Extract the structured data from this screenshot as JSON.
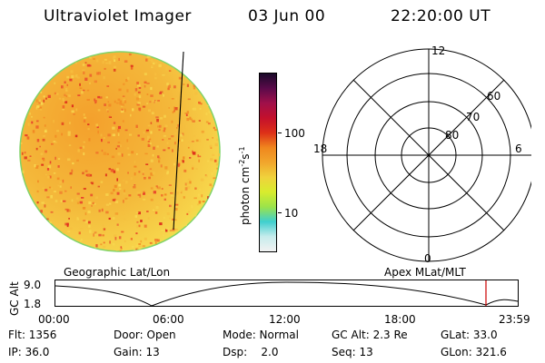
{
  "header": {
    "instrument": "Ultraviolet Imager",
    "date": "03 Jun 00",
    "time": "22:20:00 UT"
  },
  "colorbar": {
    "unit_label": "photon cm",
    "unit_exp1": "-2",
    "unit_mid": "s",
    "unit_exp2": "-1",
    "tick_100": "100",
    "tick_10": "10",
    "colors": [
      "#f2f2f2",
      "#c6ecec",
      "#3fcfcf",
      "#9be34a",
      "#d8ec2e",
      "#f0d23c",
      "#f1a62c",
      "#f0861e",
      "#dd3018",
      "#c4102c",
      "#a0104a",
      "#5a0a4a",
      "#1a0a2a"
    ]
  },
  "polar": {
    "mlt_labels": {
      "top": "12",
      "bottom": "0",
      "left": "18",
      "right": "6"
    },
    "lat_labels": [
      "60",
      "70",
      "80"
    ]
  },
  "labels": {
    "left": "Geographic Lat/Lon",
    "right": "Apex MLat/MLT"
  },
  "altplot": {
    "axis_label": "GC Alt",
    "y_top": "9.0",
    "y_bottom": "1.8",
    "x_ticks": [
      "00:00",
      "06:00",
      "12:00",
      "18:00",
      "23:59"
    ],
    "marker_color": "#cc0000"
  },
  "info": {
    "flt": "Flt: 1356",
    "ip": "IP: 36.0",
    "door": "Door: Open",
    "gain": "Gain: 13",
    "mode": "Mode: Normal",
    "dsp_label": "Dsp:",
    "dsp_value": "2.0",
    "gcalt": "GC Alt: 2.3 Re",
    "seq": "Seq: 13",
    "glat": "GLat: 33.0",
    "glon": "GLon: 321.6"
  }
}
